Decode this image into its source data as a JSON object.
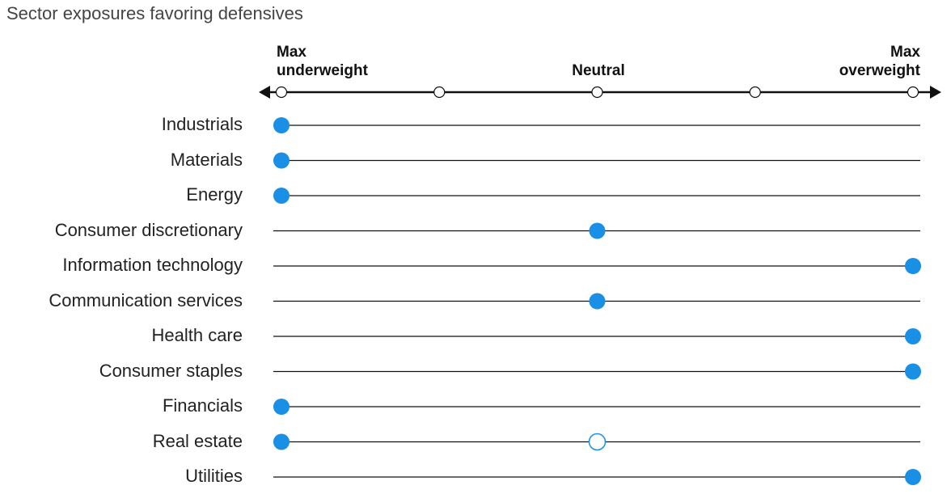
{
  "title": "Sector exposures favoring defensives",
  "scale": {
    "left_label_line1": "Max",
    "left_label_line2": "underweight",
    "mid_label": "Neutral",
    "right_label_line1": "Max",
    "right_label_line2": "overweight",
    "ticks": [
      -2,
      -1,
      0,
      1,
      2
    ]
  },
  "colors": {
    "current": "#1a8fe6",
    "prior_fill": "#ffffff",
    "prior_stroke": "#1a8fe6",
    "line": "#111111"
  },
  "chart_data": {
    "type": "scatter",
    "title": "Sector exposures favoring defensives",
    "categories": [
      "Industrials",
      "Materials",
      "Energy",
      "Consumer discretionary",
      "Information technology",
      "Communication services",
      "Health care",
      "Consumer staples",
      "Financials",
      "Real estate",
      "Utilities"
    ],
    "xlim": [
      -2,
      2
    ],
    "series": [
      {
        "values": [
          -2,
          -2,
          -2,
          0,
          2,
          0,
          2,
          2,
          -2,
          -2,
          2
        ],
        "style": "filled"
      },
      {
        "values": [
          null,
          null,
          null,
          null,
          null,
          null,
          null,
          null,
          null,
          0,
          null
        ],
        "style": "hollow"
      }
    ]
  }
}
